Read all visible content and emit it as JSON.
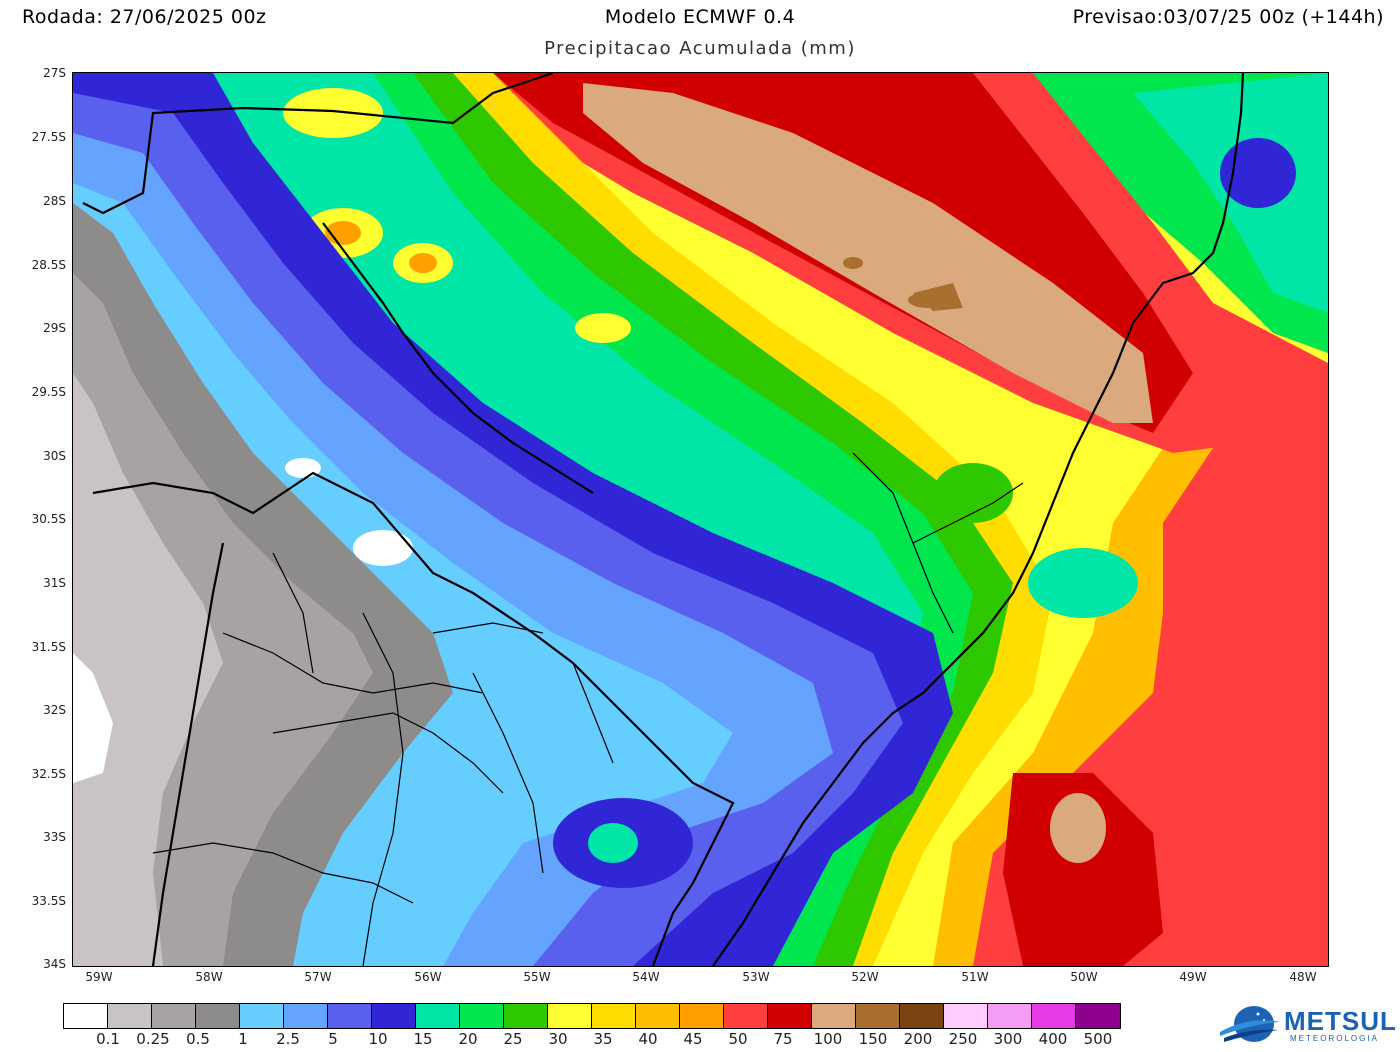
{
  "header": {
    "run": "Rodada: 27/06/2025 00z",
    "model": "Modelo ECMWF 0.4",
    "forecast": "Previsao:03/07/25 00z (+144h)",
    "subtitle": "Precipitacao Acumulada (mm)"
  },
  "axes": {
    "lat_labels": [
      "27S",
      "27.5S",
      "28S",
      "28.5S",
      "29S",
      "29.5S",
      "30S",
      "30.5S",
      "31S",
      "31.5S",
      "32S",
      "32.5S",
      "33S",
      "33.5S",
      "34S"
    ],
    "lon_labels": [
      "59W",
      "58W",
      "57W",
      "56W",
      "55W",
      "54W",
      "53W",
      "52W",
      "51W",
      "50W",
      "49W",
      "48W"
    ]
  },
  "colorbar": {
    "colors": [
      "#ffffff",
      "#c9c3c3",
      "#a8a3a3",
      "#8e8b8b",
      "#66cdff",
      "#64a4ff",
      "#5a60ee",
      "#3126d6",
      "#00e6a6",
      "#00e64c",
      "#2ec800",
      "#ffff32",
      "#ffdd00",
      "#ffbf00",
      "#ffa000",
      "#ff3f3f",
      "#d10000",
      "#dba97e",
      "#a86f2e",
      "#7a4312",
      "#ffccff",
      "#f59cf5",
      "#e63ae6",
      "#8c008c"
    ],
    "labels": [
      "0.1",
      "0.25",
      "0.5",
      "1",
      "2.5",
      "5",
      "10",
      "15",
      "20",
      "25",
      "30",
      "35",
      "40",
      "45",
      "50",
      "75",
      "100",
      "150",
      "200",
      "250",
      "300",
      "400",
      "500"
    ]
  },
  "logo": {
    "name": "METSUL",
    "tagline": "METEOROLOGIA"
  }
}
